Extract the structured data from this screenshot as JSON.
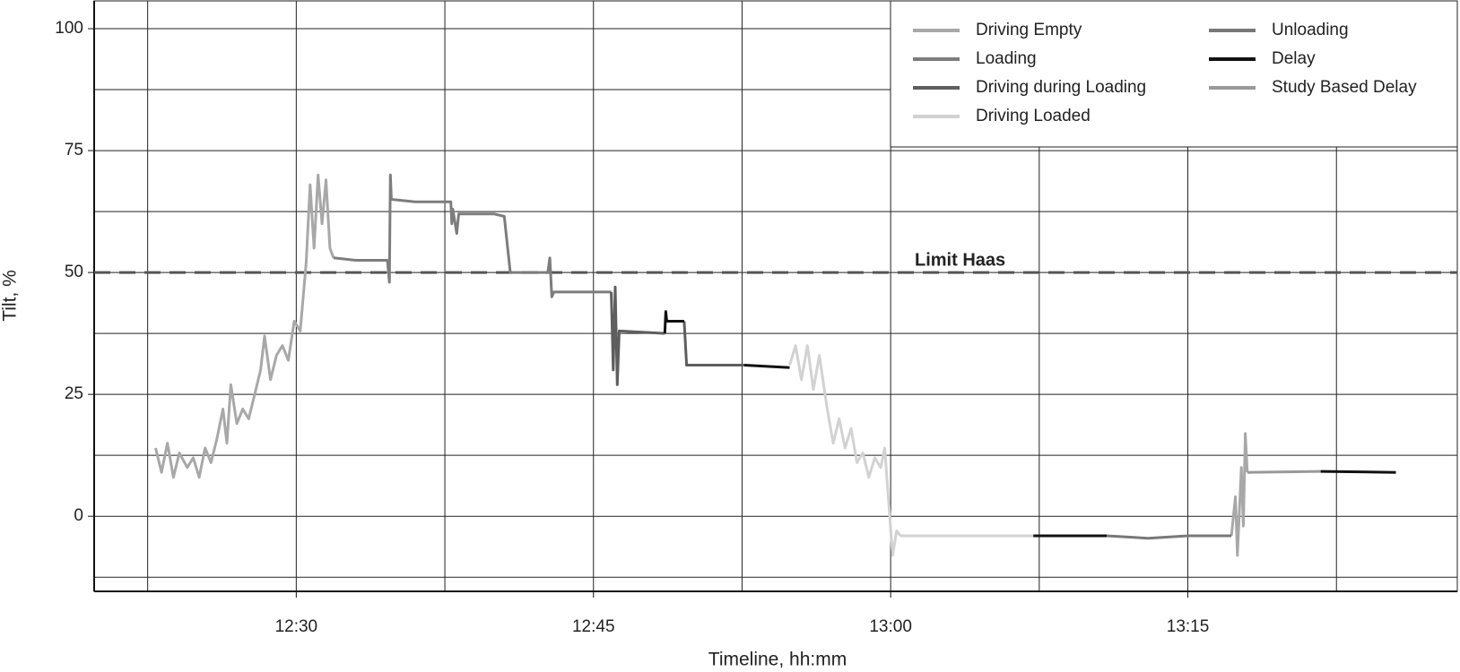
{
  "chart_data": {
    "type": "line",
    "xlabel": "Timeline, hh:mm",
    "ylabel": "Tilt, %",
    "xlim": [
      739.8,
      808.6
    ],
    "ylim": [
      -15.4,
      105.7
    ],
    "xticks": [
      {
        "value": 750,
        "label": "12:30"
      },
      {
        "value": 765,
        "label": "12:45"
      },
      {
        "value": 780,
        "label": "13:00"
      },
      {
        "value": 795,
        "label": "13:15"
      }
    ],
    "yticks": [
      0,
      25,
      50,
      75,
      100
    ],
    "minor_xticks": [
      742.5,
      757.5,
      772.5,
      787.5,
      802.5
    ],
    "minor_yticks": [
      -12.5,
      12.5,
      37.5,
      62.5,
      87.5
    ],
    "grid": true,
    "legend": "upper right",
    "legend_columns": 2,
    "limit": {
      "value": 50,
      "label": "Limit Haas",
      "color": "#555555"
    },
    "series": [
      {
        "name": "Driving Empty",
        "color": "#a8a8a8",
        "x": [
          742.9,
          743.2,
          743.5,
          743.8,
          744.1,
          744.5,
          744.8,
          745.1,
          745.4,
          745.7,
          746.0,
          746.3,
          746.5,
          746.7,
          747.0,
          747.3,
          747.6,
          747.9,
          748.2,
          748.4,
          748.7,
          749.0,
          749.3,
          749.6,
          749.9,
          750.2,
          750.5,
          750.7,
          750.9,
          751.1,
          751.3,
          751.5,
          751.7,
          751.88,
          null,
          797.2,
          797.4,
          797.5,
          797.7,
          797.8,
          797.9,
          798.0
        ],
        "values": [
          14,
          9,
          15,
          8,
          13,
          10,
          12,
          8,
          14,
          11,
          16,
          22,
          15,
          27,
          19,
          22,
          20,
          25,
          30,
          37,
          28,
          33,
          35,
          32,
          40,
          38,
          52,
          68,
          55,
          70,
          60,
          69,
          55,
          53,
          null,
          -4,
          4,
          -8,
          10,
          -2,
          17,
          9
        ]
      },
      {
        "name": "Loading",
        "color": "#7d7d7d",
        "x": [
          751.88,
          753.0,
          754.6,
          754.7,
          754.75,
          754.8,
          756.0,
          757.8,
          757.85,
          757.9,
          758.1,
          758.2,
          760.0,
          760.5,
          760.8,
          762.7,
          762.8,
          762.9,
          763.0,
          765.9
        ],
        "values": [
          53,
          52.5,
          52.5,
          48,
          70,
          65,
          64.5,
          64.5,
          60,
          63,
          58,
          62,
          62,
          61.5,
          50,
          50,
          53,
          45,
          46,
          46
        ]
      },
      {
        "name": "Driving during Loading",
        "color": "#5e5e5e",
        "x": [
          765.9,
          766.0,
          766.1,
          766.2,
          766.3,
          768.6,
          null,
          769.58,
          769.7,
          772.6
        ],
        "values": [
          46,
          30,
          47,
          27,
          38,
          37.5,
          null,
          40,
          31,
          31
        ]
      },
      {
        "name": "Driving Loaded",
        "color": "#d2d2d2",
        "x": [
          774.9,
          775.2,
          775.5,
          775.8,
          776.1,
          776.4,
          776.8,
          777.1,
          777.4,
          777.7,
          778.0,
          778.3,
          778.6,
          778.9,
          779.2,
          779.5,
          779.7,
          779.9,
          780.1,
          780.3,
          780.5,
          787.2
        ],
        "values": [
          31,
          35,
          28,
          35,
          26,
          33,
          22,
          15,
          20,
          14,
          18,
          11,
          13,
          8,
          12,
          10,
          14,
          3,
          -8,
          -3,
          -4,
          -4
        ]
      },
      {
        "name": "Unloading",
        "color": "#787878",
        "x": [
          790.9,
          793.0,
          795.0,
          797.2
        ],
        "values": [
          -4,
          -4.5,
          -4,
          -4
        ]
      },
      {
        "name": "Delay",
        "color": "#111111",
        "x": [
          768.6,
          768.65,
          768.7,
          769.58,
          null,
          772.6,
          774.9,
          null,
          787.2,
          790.9,
          null,
          801.7,
          805.5
        ],
        "values": [
          37.5,
          42,
          40,
          40,
          null,
          31,
          30.5,
          null,
          -4,
          -4,
          null,
          9.2,
          9
        ]
      },
      {
        "name": "Study Based Delay",
        "color": "#999999",
        "x": [
          798.0,
          801.7
        ],
        "values": [
          9,
          9.2
        ]
      }
    ]
  }
}
